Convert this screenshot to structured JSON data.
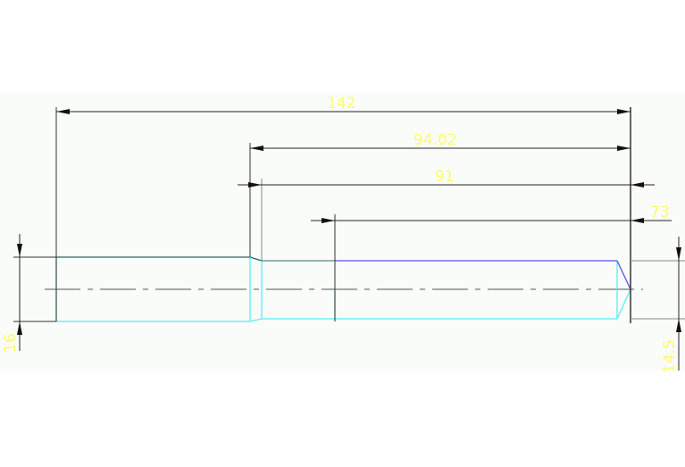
{
  "drawing": {
    "dimensions": {
      "overall_length": "142",
      "length_2": "94.02",
      "length_3": "91",
      "length_4": "73",
      "diameter_left": "16",
      "diameter_right": "14.5"
    },
    "colors": {
      "background": "#f9fcf9",
      "dimension_line": "#222222",
      "dimension_text": "#ffff66",
      "outline_cyan": "#55f0f0",
      "outline_blue": "#5a50e0",
      "outline_teal": "#2a6666",
      "centerline": "#555555"
    }
  }
}
